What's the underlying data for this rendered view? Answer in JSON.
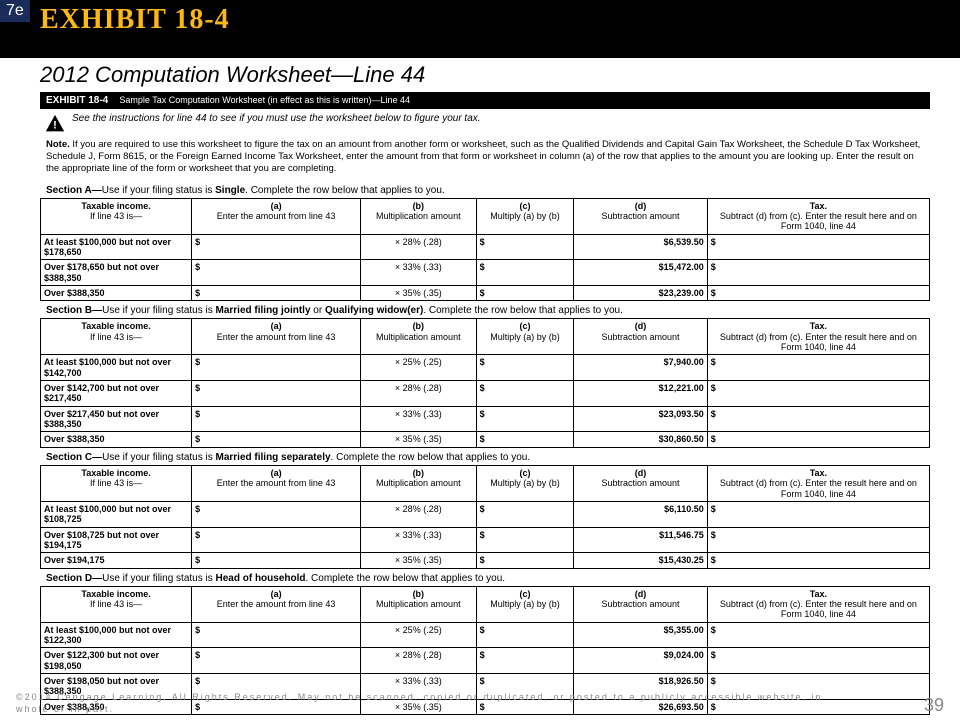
{
  "edition": "7e",
  "exhibit_title": "EXHIBIT 18-4",
  "subtitle": "2012 Computation Worksheet—Line 44",
  "worksheet_header_label": "EXHIBIT 18-4",
  "worksheet_header_desc": "Sample Tax Computation Worksheet (in effect as this is written)—Line 44",
  "instruction": "See the instructions for line 44 to see if you must use the worksheet below to figure your tax.",
  "note_label": "Note.",
  "note_text": " If you are required to use this worksheet to figure the tax on an amount from another form or worksheet, such as the Qualified Dividends and Capital Gain Tax Worksheet, the Schedule D Tax Worksheet, Schedule J, Form 8615, or the Foreign Earned Income Tax Worksheet, enter the amount from that form or worksheet in column (a) of the row that applies to the amount you are looking up. Enter the result on the appropriate line of the form or worksheet that you are completing.",
  "columns": {
    "income_head": "Taxable income.",
    "income_sub": "If line 43 is—",
    "a_head": "(a)",
    "a_sub": "Enter the amount from line 43",
    "b_head": "(b)",
    "b_sub": "Multiplication amount",
    "c_head": "(c)",
    "c_sub": "Multiply (a) by (b)",
    "d_head": "(d)",
    "d_sub": "Subtraction amount",
    "tax_head": "Tax.",
    "tax_sub": "Subtract (d) from (c). Enter the result here and on Form 1040, line 44"
  },
  "sections": [
    {
      "label_prefix": "Section A—",
      "label_text": "Use if your filing status is ",
      "label_bold": "Single",
      "label_suffix": ". Complete the row below that applies to you.",
      "rows": [
        {
          "income": "At least $100,000 but not over $178,650",
          "a": "$",
          "b": "× 28% (.28)",
          "c": "$",
          "d": "$6,539.50",
          "tax": "$"
        },
        {
          "income": "Over $178,650 but not over $388,350",
          "a": "$",
          "b": "× 33% (.33)",
          "c": "$",
          "d": "$15,472.00",
          "tax": "$"
        },
        {
          "income": "Over $388,350",
          "a": "$",
          "b": "× 35% (.35)",
          "c": "$",
          "d": "$23,239.00",
          "tax": "$"
        }
      ]
    },
    {
      "label_prefix": "Section B—",
      "label_text": "Use if your filing status is ",
      "label_bold": "Married filing jointly",
      "label_mid": " or ",
      "label_bold2": "Qualifying widow(er)",
      "label_suffix": ". Complete the row below that applies to you.",
      "rows": [
        {
          "income": "At least $100,000 but not over $142,700",
          "a": "$",
          "b": "× 25% (.25)",
          "c": "$",
          "d": "$7,940.00",
          "tax": "$"
        },
        {
          "income": "Over $142,700 but not over $217,450",
          "a": "$",
          "b": "× 28% (.28)",
          "c": "$",
          "d": "$12,221.00",
          "tax": "$"
        },
        {
          "income": "Over $217,450 but not over $388,350",
          "a": "$",
          "b": "× 33% (.33)",
          "c": "$",
          "d": "$23,093.50",
          "tax": "$"
        },
        {
          "income": "Over $388,350",
          "a": "$",
          "b": "× 35% (.35)",
          "c": "$",
          "d": "$30,860.50",
          "tax": "$"
        }
      ]
    },
    {
      "label_prefix": "Section C—",
      "label_text": "Use if your filing status is ",
      "label_bold": "Married filing separately",
      "label_suffix": ". Complete the row below that applies to you.",
      "rows": [
        {
          "income": "At least $100,000 but not over $108,725",
          "a": "$",
          "b": "× 28% (.28)",
          "c": "$",
          "d": "$6,110.50",
          "tax": "$"
        },
        {
          "income": "Over $108,725 but not over $194,175",
          "a": "$",
          "b": "× 33% (.33)",
          "c": "$",
          "d": "$11,546.75",
          "tax": "$"
        },
        {
          "income": "Over $194,175",
          "a": "$",
          "b": "× 35% (.35)",
          "c": "$",
          "d": "$15,430.25",
          "tax": "$"
        }
      ]
    },
    {
      "label_prefix": "Section D—",
      "label_text": "Use if your filing status is ",
      "label_bold": "Head of household",
      "label_suffix": ". Complete the row below that applies to you.",
      "rows": [
        {
          "income": "At least $100,000 but not over $122,300",
          "a": "$",
          "b": "× 25% (.25)",
          "c": "$",
          "d": "$5,355.00",
          "tax": "$"
        },
        {
          "income": "Over $122,300 but not over $198,050",
          "a": "$",
          "b": "× 28% (.28)",
          "c": "$",
          "d": "$9,024.00",
          "tax": "$"
        },
        {
          "income": "Over $198,050 but not over $388,350",
          "a": "$",
          "b": "× 33% (.33)",
          "c": "$",
          "d": "$18,926.50",
          "tax": "$"
        },
        {
          "income": "Over $388,350",
          "a": "$",
          "b": "× 35% (.35)",
          "c": "$",
          "d": "$26,693.50",
          "tax": "$"
        }
      ]
    }
  ],
  "copyright": "©2014 Cengage Learning. All Rights Reserved. May not be scanned, copied or duplicated, or posted to a publicly accessible website, in whole or in part.",
  "page_number": "39"
}
